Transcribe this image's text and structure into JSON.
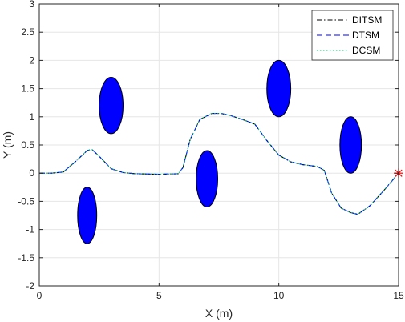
{
  "chart_data": {
    "type": "line",
    "xlabel": "X (m)",
    "ylabel": "Y (m)",
    "xlim": [
      0,
      15
    ],
    "ylim": [
      -2,
      3
    ],
    "grid": true,
    "legend_position": "top-right",
    "x_ticks": [
      "0",
      "5",
      "10",
      "15"
    ],
    "y_ticks": [
      "-2",
      "-1.5",
      "-1",
      "-0.5",
      "0",
      "0.5",
      "1",
      "1.5",
      "2",
      "2.5",
      "3"
    ],
    "series": [
      {
        "name": "DITSM",
        "style": "dash-dot",
        "color": "#000000",
        "points": [
          [
            0,
            0
          ],
          [
            0.5,
            0
          ],
          [
            1,
            0.02
          ],
          [
            1.5,
            0.2
          ],
          [
            2,
            0.4
          ],
          [
            2.2,
            0.42
          ],
          [
            2.5,
            0.3
          ],
          [
            3,
            0.08
          ],
          [
            3.5,
            0.01
          ],
          [
            4,
            -0.01
          ],
          [
            5,
            -0.02
          ],
          [
            5.8,
            -0.01
          ],
          [
            6,
            0.1
          ],
          [
            6.3,
            0.6
          ],
          [
            6.7,
            0.95
          ],
          [
            7.2,
            1.06
          ],
          [
            7.6,
            1.06
          ],
          [
            8,
            1.02
          ],
          [
            8.5,
            0.95
          ],
          [
            9,
            0.87
          ],
          [
            9.5,
            0.58
          ],
          [
            10,
            0.32
          ],
          [
            10.5,
            0.2
          ],
          [
            11,
            0.15
          ],
          [
            11.6,
            0.12
          ],
          [
            11.9,
            0.05
          ],
          [
            12.2,
            -0.35
          ],
          [
            12.6,
            -0.62
          ],
          [
            13,
            -0.7
          ],
          [
            13.3,
            -0.73
          ],
          [
            13.8,
            -0.58
          ],
          [
            14.4,
            -0.3
          ],
          [
            15,
            0
          ]
        ]
      },
      {
        "name": "DTSM",
        "style": "dashed",
        "color": "#0000ff",
        "points": [
          [
            0,
            0
          ],
          [
            0.5,
            0
          ],
          [
            1,
            0.02
          ],
          [
            1.5,
            0.2
          ],
          [
            2,
            0.4
          ],
          [
            2.2,
            0.42
          ],
          [
            2.5,
            0.3
          ],
          [
            3,
            0.08
          ],
          [
            3.5,
            0.01
          ],
          [
            4,
            -0.01
          ],
          [
            5,
            -0.02
          ],
          [
            5.8,
            -0.01
          ],
          [
            6,
            0.1
          ],
          [
            6.3,
            0.6
          ],
          [
            6.7,
            0.95
          ],
          [
            7.2,
            1.06
          ],
          [
            7.6,
            1.06
          ],
          [
            8,
            1.02
          ],
          [
            8.5,
            0.95
          ],
          [
            9,
            0.87
          ],
          [
            9.5,
            0.58
          ],
          [
            10,
            0.32
          ],
          [
            10.5,
            0.2
          ],
          [
            11,
            0.15
          ],
          [
            11.6,
            0.12
          ],
          [
            11.9,
            0.05
          ],
          [
            12.2,
            -0.35
          ],
          [
            12.6,
            -0.62
          ],
          [
            13,
            -0.7
          ],
          [
            13.3,
            -0.73
          ],
          [
            13.8,
            -0.58
          ],
          [
            14.4,
            -0.3
          ],
          [
            15,
            0
          ]
        ]
      },
      {
        "name": "DCSM",
        "style": "dotted",
        "color": "#00cc66",
        "points": [
          [
            0,
            0
          ],
          [
            0.5,
            0
          ],
          [
            1,
            0.02
          ],
          [
            1.5,
            0.2
          ],
          [
            2,
            0.4
          ],
          [
            2.2,
            0.42
          ],
          [
            2.5,
            0.3
          ],
          [
            3,
            0.08
          ],
          [
            3.5,
            0.01
          ],
          [
            4,
            -0.01
          ],
          [
            5,
            -0.02
          ],
          [
            5.8,
            -0.01
          ],
          [
            6,
            0.1
          ],
          [
            6.3,
            0.6
          ],
          [
            6.7,
            0.95
          ],
          [
            7.2,
            1.06
          ],
          [
            7.6,
            1.06
          ],
          [
            8,
            1.02
          ],
          [
            8.5,
            0.95
          ],
          [
            9,
            0.87
          ],
          [
            9.5,
            0.58
          ],
          [
            10,
            0.32
          ],
          [
            10.5,
            0.2
          ],
          [
            11,
            0.15
          ],
          [
            11.6,
            0.12
          ],
          [
            11.9,
            0.05
          ],
          [
            12.2,
            -0.35
          ],
          [
            12.6,
            -0.62
          ],
          [
            13,
            -0.7
          ],
          [
            13.3,
            -0.73
          ],
          [
            13.8,
            -0.58
          ],
          [
            14.4,
            -0.3
          ],
          [
            15,
            0
          ]
        ]
      }
    ],
    "obstacles": [
      {
        "cx": 2,
        "cy": -0.75,
        "rx": 0.4,
        "ry": 0.5
      },
      {
        "cx": 3,
        "cy": 1.2,
        "rx": 0.5,
        "ry": 0.5
      },
      {
        "cx": 7,
        "cy": -0.1,
        "rx": 0.45,
        "ry": 0.5
      },
      {
        "cx": 10,
        "cy": 1.5,
        "rx": 0.5,
        "ry": 0.5
      },
      {
        "cx": 13,
        "cy": 0.5,
        "rx": 0.45,
        "ry": 0.5
      }
    ],
    "obstacle_color": "#0000ff",
    "goal": {
      "x": 15,
      "y": 0,
      "color": "#ff0000"
    }
  }
}
